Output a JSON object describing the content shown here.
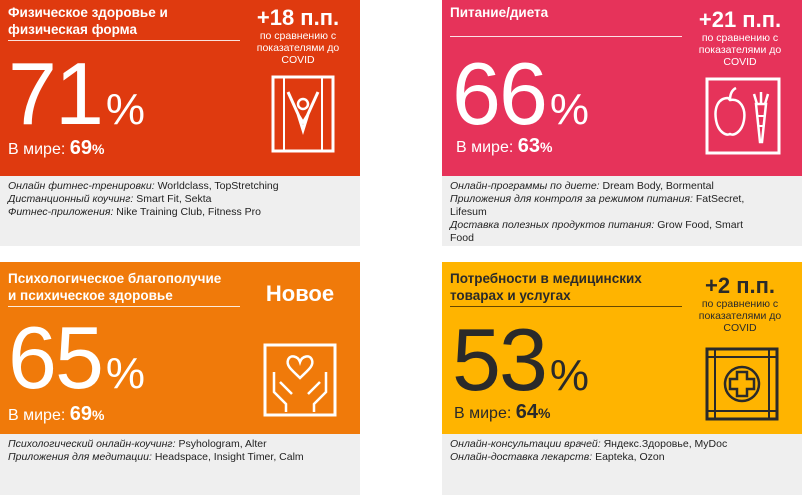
{
  "cards": {
    "fitness": {
      "title_line1": "Физическое здоровье и",
      "title_line2": "физическая форма",
      "delta": "+18 п.п.",
      "delta_note_1": "по сравнению с",
      "delta_note_2": "показателями до",
      "delta_note_3": "COVID",
      "value": "71",
      "pct": "%",
      "world_label": "В мире:",
      "world_value": "69",
      "world_pct": "%",
      "icon": "person-exercising-icon",
      "examples": [
        {
          "label": "Онлайн фитнес-тренировки:",
          "value": " Worldclass, TopStretching"
        },
        {
          "label": "Дистанционный коучинг:",
          "value": " Smart Fit, Sekta"
        },
        {
          "label": "Фитнес-приложения:",
          "value": " Nike Training Club, Fitness Pro"
        }
      ],
      "color": "#df3a0f"
    },
    "diet": {
      "title": "Питание/диета",
      "delta": "+21 п.п.",
      "delta_note_1": "по сравнению с",
      "delta_note_2": "показателями до",
      "delta_note_3": "COVID",
      "value": "66",
      "pct": "%",
      "world_label": "В мире:",
      "world_value": "63",
      "world_pct": "%",
      "icon": "apple-carrot-icon",
      "examples": [
        {
          "label": "Онлайн-программы по диете:",
          "value": " Dream Body, Bormental"
        },
        {
          "label": "Приложения для контроля за режимом питания:",
          "value": " FatSecret,"
        },
        {
          "label": "",
          "value": "Lifesum"
        },
        {
          "label": "Доставка полезных продуктов питания:",
          "value": " Grow Food, Smart"
        },
        {
          "label": "",
          "value": "Food"
        }
      ],
      "color": "#e6335a"
    },
    "mental": {
      "title_line1": "Психологическое благополучие",
      "title_line2": "и психическое здоровье",
      "badge": "Новое",
      "value": "65",
      "pct": "%",
      "world_label": "В мире:",
      "world_value": "69",
      "world_pct": "%",
      "icon": "hands-heart-icon",
      "examples": [
        {
          "label": "Психологический онлайн-коучинг:",
          "value": " Psyhologram, Alter"
        },
        {
          "label": "Приложения для медитации:",
          "value": " Headspace, Insight Timer, Calm"
        }
      ],
      "color": "#f07a0a"
    },
    "medical": {
      "title_line1": "Потребности в медицинских",
      "title_line2": "товарах и услугах",
      "delta": "+2 п.п.",
      "delta_note_1": "по сравнению с",
      "delta_note_2": "показателями до",
      "delta_note_3": "COVID",
      "value": "53",
      "pct": "%",
      "world_label": "В мире:",
      "world_value": "64",
      "world_pct": "%",
      "icon": "medical-cross-icon",
      "examples": [
        {
          "label": "Онлайн-консультации врачей:",
          "value": " Яндекс.Здоровье, MyDoc"
        },
        {
          "label": "Онлайн-доставка лекарств:",
          "value": " Eapteka, Ozon"
        }
      ],
      "color": "#ffb400"
    }
  }
}
